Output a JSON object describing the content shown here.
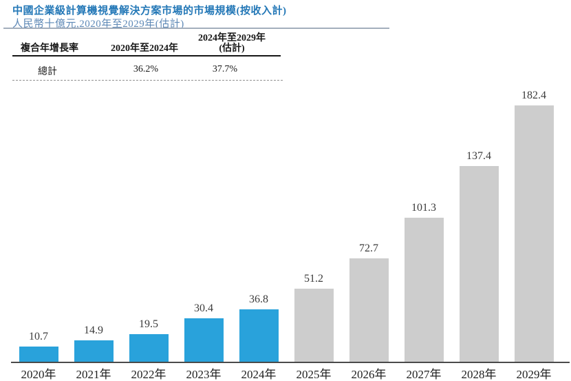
{
  "header": {
    "title": "中國企業級計算機視覺解決方案市場的市場規模(按收入計)",
    "subtitle": "人民幣十億元,2020年至2029年(估計)"
  },
  "cagr_table": {
    "col1_header": "複合年增長率",
    "col2_header": "2020年至2024年",
    "col3_header_line1": "2024年至2029年",
    "col3_header_line2": "(估計)",
    "row_label": "總計",
    "col2_value": "36.2%",
    "col3_value": "37.7%"
  },
  "chart_data": {
    "type": "bar",
    "title": "中國企業級計算機視覺解決方案市場的市場規模(按收入計)",
    "unit_label": "人民幣十億元",
    "categories": [
      "2020年",
      "2021年",
      "2022年",
      "2023年",
      "2024年",
      "2025年",
      "2026年",
      "2027年",
      "2028年",
      "2029年"
    ],
    "values": [
      10.7,
      14.9,
      19.5,
      30.4,
      36.8,
      51.2,
      72.7,
      101.3,
      137.4,
      182.4
    ],
    "value_labels": [
      "10.7",
      "14.9",
      "19.5",
      "30.4",
      "36.8",
      "51.2",
      "72.7",
      "101.3",
      "137.4",
      "182.4"
    ],
    "ylim": [
      0,
      190
    ],
    "gridlines": false,
    "legend": "none",
    "actual_color": "#29a2db",
    "estimate_color": "#cdcdcd",
    "estimate_start_index": 5,
    "axis_color": "#4a4a4a"
  }
}
